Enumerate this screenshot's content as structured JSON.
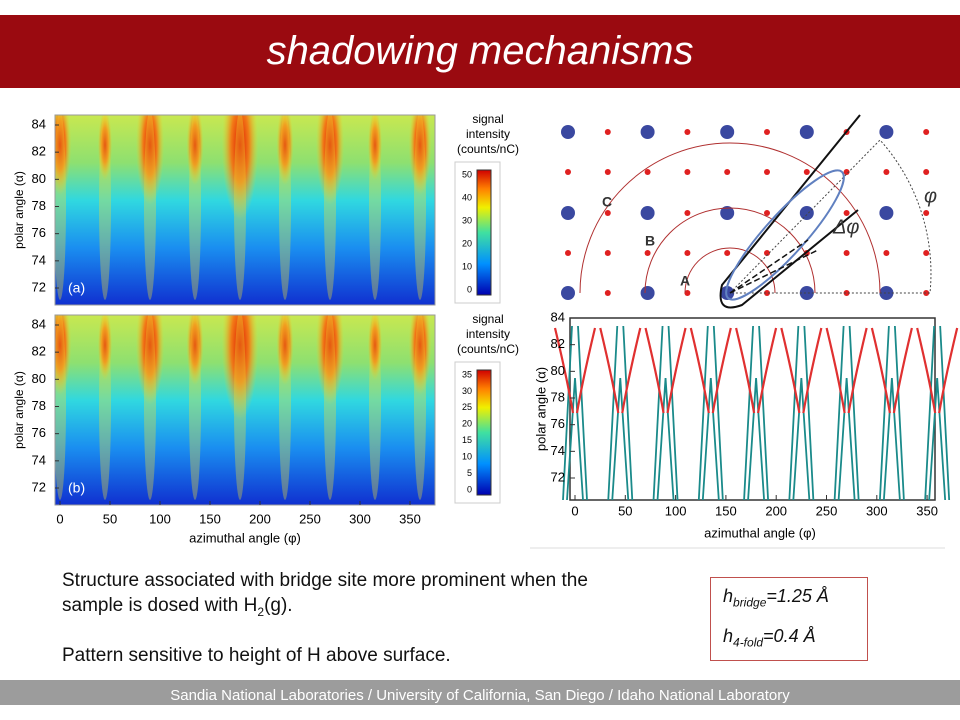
{
  "header": {
    "title": "shadowing mechanisms"
  },
  "panels": [
    {
      "label": "(a)",
      "y_axis_label": "polar angle (α)",
      "yticks": [
        84,
        82,
        80,
        78,
        76,
        74,
        72
      ],
      "colorbar": {
        "title": [
          "signal",
          "intensity",
          "(counts/nC)"
        ],
        "ticks": [
          50,
          40,
          30,
          20,
          10,
          0
        ]
      }
    },
    {
      "label": "(b)",
      "y_axis_label": "polar angle (α)",
      "yticks": [
        84,
        82,
        80,
        78,
        76,
        74,
        72
      ],
      "colorbar": {
        "title": [
          "signal",
          "intensity",
          "(counts/nC)"
        ],
        "ticks": [
          35,
          30,
          25,
          20,
          15,
          10,
          5,
          0
        ]
      },
      "x_axis_label": "azimuthal angle (φ)",
      "xticks": [
        0,
        50,
        100,
        150,
        200,
        250,
        300,
        350
      ]
    }
  ],
  "diagram": {
    "labels": {
      "c": "C",
      "b": "B",
      "a": "A",
      "delta_phi": "Δφ",
      "phi": "φ"
    }
  },
  "model_plot": {
    "y_axis_label": "polar angle (α)",
    "x_axis_label": "azimuthal angle (φ)",
    "yticks": [
      84,
      82,
      80,
      78,
      76,
      74,
      72
    ],
    "xticks": [
      0,
      50,
      100,
      150,
      200,
      250,
      300,
      350
    ]
  },
  "body": {
    "paragraphs": [
      [
        "Structure associated with bridge site more prominent when the sample is dosed with H",
        "2",
        "(g)."
      ],
      [
        "Pattern sensitive to height of H above surface."
      ]
    ]
  },
  "box": {
    "lines": [
      [
        "h",
        "bridge",
        "=1.25 Å"
      ],
      [
        "h",
        "4-fold",
        "=0.4 Å"
      ]
    ]
  },
  "footer": {
    "text": "Sandia National Laboratories / University of California, San Diego / Idaho National Laboratory"
  }
}
